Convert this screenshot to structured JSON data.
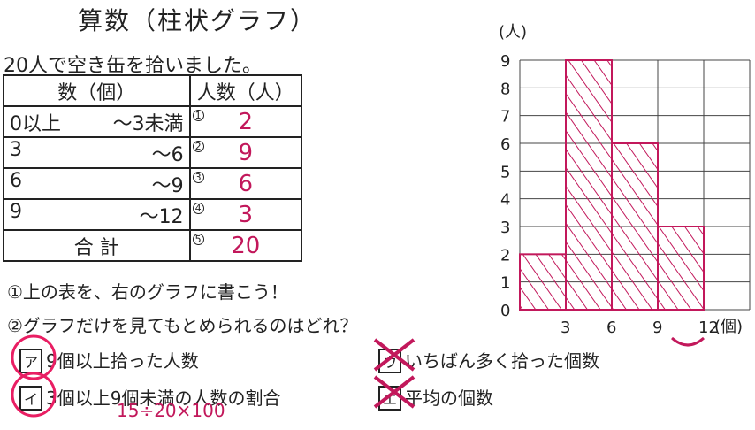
{
  "title": "算数（柱状グラフ）",
  "intro": "20人で空き缶を拾いました。",
  "table": {
    "header_count": "数（個）",
    "header_people": "人数（人）",
    "rows": [
      {
        "from": "0以上",
        "to": "〜3未満",
        "num": "1",
        "value": "2"
      },
      {
        "from": "3",
        "to": "〜6",
        "num": "2",
        "value": "9"
      },
      {
        "from": "6",
        "to": "〜9",
        "num": "3",
        "value": "6"
      },
      {
        "from": "9",
        "to": "〜12",
        "num": "4",
        "value": "3"
      }
    ],
    "total_label": "合 計",
    "total_num": "5",
    "total_value": "20"
  },
  "question1": "①上の表を、右のグラフに書こう！",
  "question2": "②グラフだけを見てもとめられるのはどれ？",
  "options": [
    {
      "mark": "ア",
      "text": "9個以上拾った人数"
    },
    {
      "mark": "イ",
      "text": "3個以上9個未満の人数の割合"
    },
    {
      "mark": "ウ",
      "text": "いちばん多く拾った個数"
    },
    {
      "mark": "エ",
      "text": "平均の個数"
    }
  ],
  "calc": "15÷20×100",
  "chart_data": {
    "type": "bar",
    "categories": [
      "0-3",
      "3-6",
      "6-9",
      "9-12"
    ],
    "values": [
      2,
      9,
      6,
      3
    ],
    "ylabel": "(人)",
    "xlabel": "(個)",
    "ylim": [
      0,
      9
    ],
    "yticks": [
      "0",
      "1",
      "2",
      "3",
      "4",
      "5",
      "6",
      "7",
      "8",
      "9"
    ],
    "xticks": [
      "3",
      "6",
      "9",
      "12"
    ],
    "grid": true,
    "bar_color": "#c2185b"
  }
}
